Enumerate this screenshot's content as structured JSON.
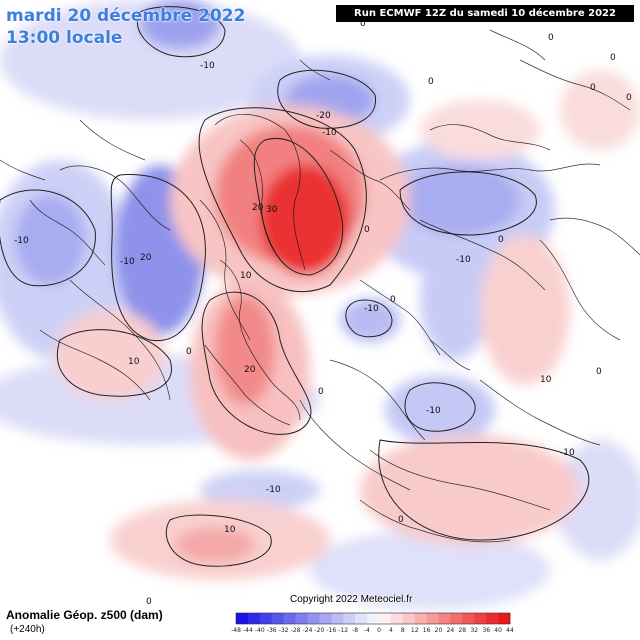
{
  "header": {
    "date": "mardi 20 décembre 2022",
    "local_time": "13:00 locale",
    "run": "Run ECMWF 12Z du samedi 10 décembre 2022"
  },
  "footer": {
    "product": "Anomalie Géop. z500 (dam)",
    "lead": "(+240h)",
    "copyright": "Copyright 2022 Meteociel.fr"
  },
  "legend": {
    "ticks": [
      "-48",
      "-44",
      "-40",
      "-36",
      "-32",
      "-28",
      "-24",
      "-20",
      "-16",
      "-12",
      "-8",
      "-4",
      "0",
      "4",
      "8",
      "12",
      "16",
      "20",
      "24",
      "28",
      "32",
      "36",
      "40",
      "44"
    ],
    "colors": [
      "#1a10e8",
      "#2c2ae8",
      "#4040ea",
      "#5656ec",
      "#6a6aee",
      "#7e7ef0",
      "#9292f2",
      "#a6a6f4",
      "#babaf7",
      "#ceceF9",
      "#e2e2fb",
      "#f2f2fe",
      "#fef0f0",
      "#fcdcdc",
      "#fac6c6",
      "#f8b0b0",
      "#f69a9a",
      "#f48484",
      "#f26e6e",
      "#f05858",
      "#ee4242",
      "#ec2c2c",
      "#ea1818"
    ]
  },
  "contour_labels": [
    "-10",
    "0",
    "-20",
    "-10",
    "0",
    "0",
    "0",
    "0",
    "0",
    "20",
    "30",
    "10",
    "-10",
    "20",
    "-10",
    "-10",
    "0",
    "0",
    "10",
    "0",
    "-10",
    "0",
    "-10",
    "0",
    "10",
    "20",
    "0",
    "-10",
    "0",
    "-10",
    "10",
    "0"
  ]
}
